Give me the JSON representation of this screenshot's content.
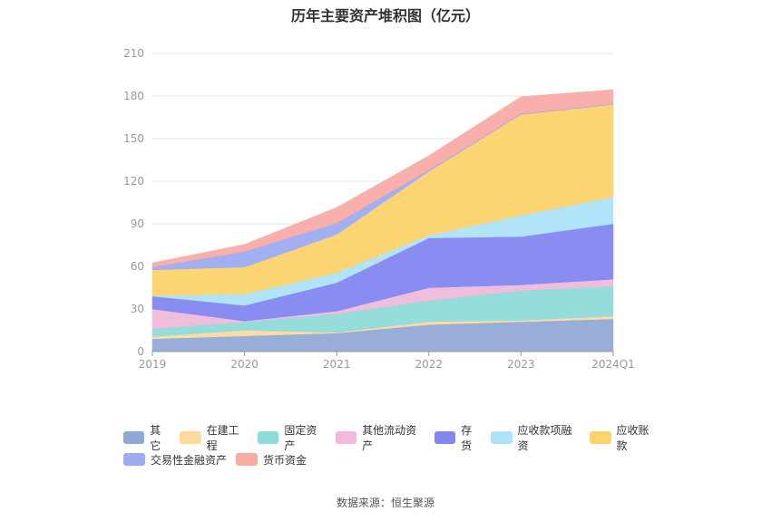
{
  "title": "历年主要资产堆积图（亿元）",
  "source": "数据来源：恒生聚源",
  "chart_data": {
    "type": "area",
    "stacked": true,
    "title": "历年主要资产堆积图（亿元）",
    "categories": [
      "2019",
      "2020",
      "2021",
      "2022",
      "2023",
      "2024Q1"
    ],
    "ylim": [
      0,
      210
    ],
    "yticks": [
      0,
      30,
      60,
      90,
      120,
      150,
      180,
      210
    ],
    "grid": true,
    "legend_position": "bottom",
    "series": [
      {
        "name": "其它",
        "color": "#92a9d6",
        "values": [
          9,
          11,
          13,
          19,
          21,
          23
        ]
      },
      {
        "name": "在建工程",
        "color": "#fdd9a0",
        "values": [
          1.5,
          4,
          0.5,
          2,
          1,
          2
        ]
      },
      {
        "name": "固定资产",
        "color": "#8fdbd8",
        "values": [
          5.5,
          6,
          13,
          15,
          21,
          21
        ]
      },
      {
        "name": "其他流动资产",
        "color": "#efbadb",
        "values": [
          14,
          0.5,
          2,
          9,
          4,
          5
        ]
      },
      {
        "name": "存货",
        "color": "#8387f0",
        "values": [
          9,
          11,
          20,
          35,
          34,
          39
        ]
      },
      {
        "name": "应收款项融资",
        "color": "#ade2f9",
        "values": [
          0.5,
          8,
          7,
          2,
          15,
          19
        ]
      },
      {
        "name": "应收账款",
        "color": "#fdd36c",
        "values": [
          18,
          19,
          27,
          45,
          71,
          65
        ]
      },
      {
        "name": "交易性金融资产",
        "color": "#9dacf2",
        "values": [
          2,
          11,
          8,
          1,
          0.5,
          0.5
        ]
      },
      {
        "name": "货币资金",
        "color": "#f9aba6",
        "values": [
          3,
          5,
          11,
          10,
          12,
          10
        ]
      }
    ]
  }
}
